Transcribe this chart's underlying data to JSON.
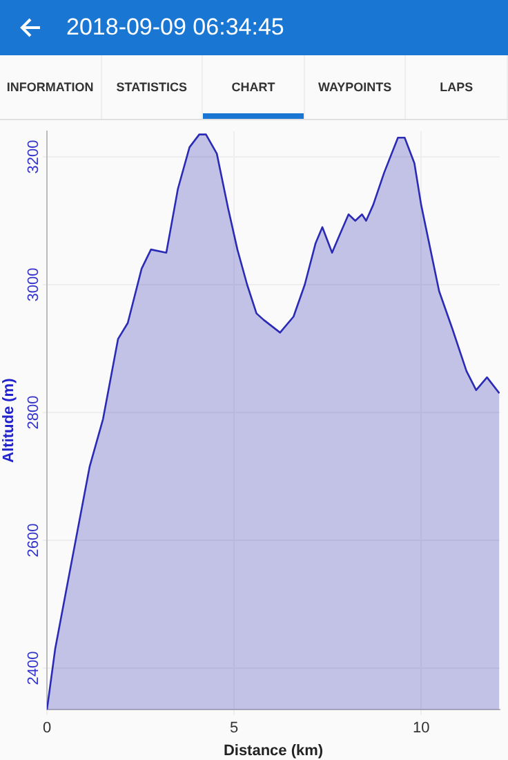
{
  "chart_data": {
    "type": "area",
    "title": "2018-09-09 06:34:45",
    "xlabel": "Distance (km)",
    "ylabel": "Altitude (m)",
    "annotations": [
      "INFORMATION",
      "STATISTICS",
      "CHART",
      "WAYPOINTS",
      "LAPS"
    ],
    "x": [
      0,
      0.22,
      0.59,
      1.14,
      1.5,
      1.9,
      2.16,
      2.53,
      2.78,
      3.19,
      3.5,
      3.81,
      4.07,
      4.25,
      4.54,
      4.84,
      5.09,
      5.35,
      5.6,
      5.79,
      6.23,
      6.59,
      6.89,
      7.18,
      7.36,
      7.62,
      7.8,
      8.06,
      8.24,
      8.42,
      8.53,
      8.72,
      9.01,
      9.38,
      9.56,
      9.82,
      10.0,
      10.48,
      10.84,
      11.21,
      11.47,
      11.76,
      12.09
    ],
    "series": [
      {
        "color": "#2a2ab4",
        "values": [
          2335,
          2430,
          2545,
          2715,
          2790,
          2915,
          2940,
          3025,
          3055,
          3050,
          3150,
          3215,
          3235,
          3235,
          3205,
          3120,
          3055,
          3000,
          2955,
          2945,
          2925,
          2950,
          3000,
          3065,
          3090,
          3050,
          3075,
          3110,
          3100,
          3110,
          3100,
          3125,
          3175,
          3230,
          3230,
          3190,
          3125,
          2990,
          2930,
          2865,
          2835,
          2855,
          2830
        ]
      }
    ],
    "xlim": [
      0,
      12.1
    ],
    "ylim": [
      2335,
      3240
    ],
    "xticks": [
      0,
      5,
      10
    ],
    "yticks": [
      2400,
      2600,
      2800,
      3000,
      3200
    ],
    "grid": true,
    "legend": false
  }
}
